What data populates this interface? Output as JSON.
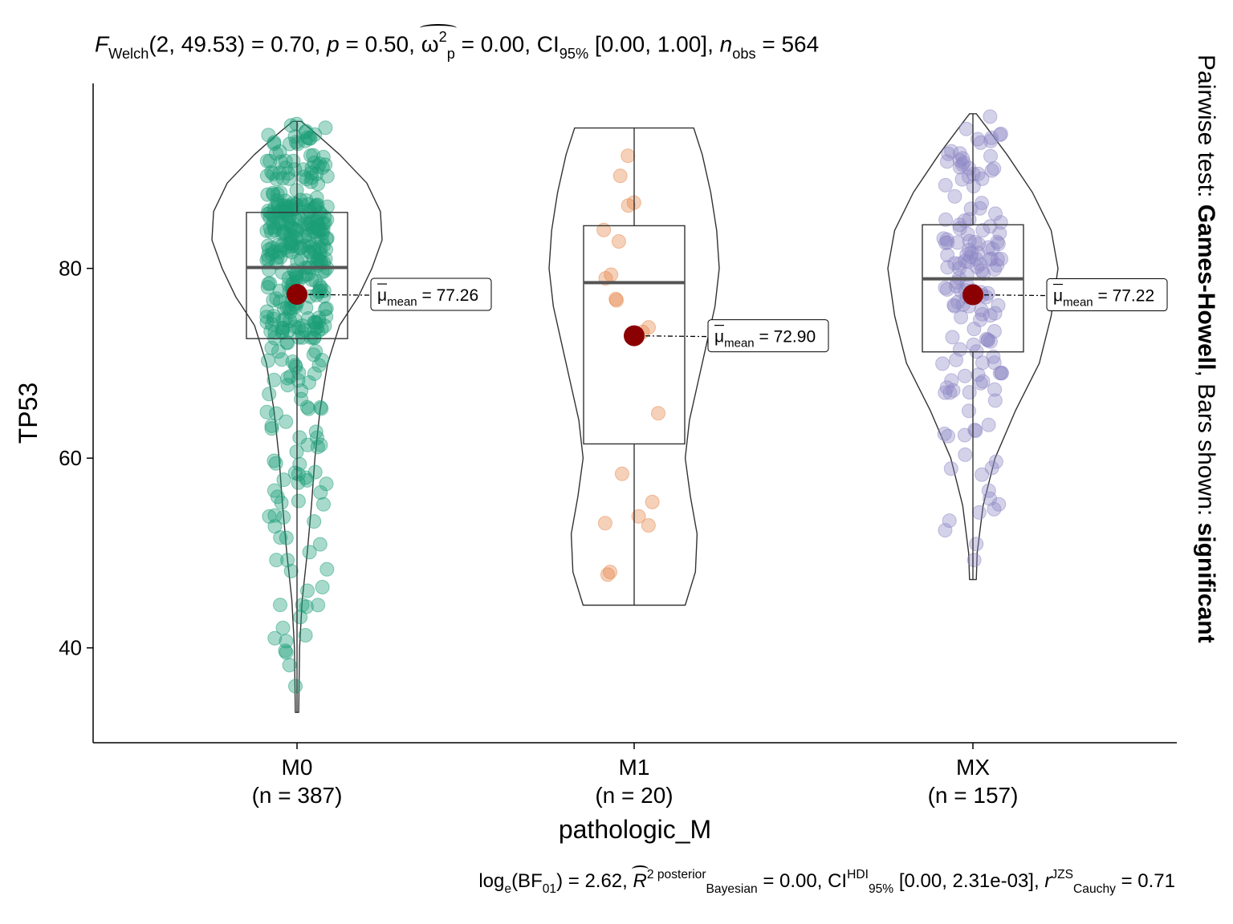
{
  "colors": {
    "M0": "#1B9E77",
    "M1": "#E6874A",
    "MX": "#8E88C6",
    "mean_point": "#8B0000"
  },
  "title_text": {
    "f_sym": "F",
    "f_sub": "Welch",
    "f_args": "(2, 49.53) = 0.70,",
    "p_sym": "p",
    "p_val": "= 0.50,",
    "omega": "ω",
    "omega_sup": "2",
    "omega_sub": "p",
    "omega_val": "= 0.00, CI",
    "ci_sub": "95%",
    "ci_val": "[0.00, 1.00],",
    "n_sym": "n",
    "n_sub": "obs",
    "n_val": "= 564"
  },
  "caption_text": {
    "log_a": "log",
    "log_sub": "e",
    "log_b": "(BF",
    "bf_sub": "01",
    "log_c": ") = 2.62,",
    "r_sym": "R",
    "r_sup": "2 posterior",
    "r_sub": "Bayesian",
    "r_val": "= 0.00, CI",
    "ci_sup": "HDI",
    "ci_sub": "95%",
    "ci_val": "[0.00, 2.31e-03],",
    "rc_sym": "r",
    "rc_sup": "JZS",
    "rc_sub": "Cauchy",
    "rc_val": "= 0.71"
  },
  "side_text": {
    "prefix": "Pairwise test: ",
    "test": "Games-Howell",
    "middle": ", Bars shown: ",
    "bars": "significant"
  },
  "chart_data": {
    "type": "violin-box-scatter",
    "xlabel": "pathologic_M",
    "ylabel": "TP53",
    "ylim": [
      30,
      99.5
    ],
    "yticks": [
      40,
      60,
      80
    ],
    "grid": false,
    "mean_label_prefix": "μ",
    "mean_label_sub": "mean",
    "groups": [
      {
        "name": "M0",
        "n_label": "(n = 387)",
        "n": 387,
        "min": 33.2,
        "q1": 72.6,
        "median": 80.1,
        "q3": 85.9,
        "max": 95.5,
        "mean": 77.26,
        "mean_label": "= 77.26",
        "density": [
          [
            33.2,
            0.02
          ],
          [
            40,
            0.03
          ],
          [
            45,
            0.06
          ],
          [
            50,
            0.12
          ],
          [
            55,
            0.17
          ],
          [
            60,
            0.21
          ],
          [
            65,
            0.27
          ],
          [
            70,
            0.36
          ],
          [
            74,
            0.5
          ],
          [
            77,
            0.72
          ],
          [
            80,
            0.88
          ],
          [
            83,
            1.0
          ],
          [
            86,
            0.98
          ],
          [
            89,
            0.82
          ],
          [
            92,
            0.5
          ],
          [
            94,
            0.25
          ],
          [
            95.5,
            0.05
          ]
        ]
      },
      {
        "name": "M1",
        "n_label": "(n = 20)",
        "n": 20,
        "min": 44.5,
        "q1": 61.5,
        "median": 78.5,
        "q3": 84.5,
        "max": 94.8,
        "mean": 72.9,
        "mean_label": "= 72.90",
        "density": [
          [
            44.5,
            0.6
          ],
          [
            48,
            0.72
          ],
          [
            52,
            0.74
          ],
          [
            56,
            0.66
          ],
          [
            60,
            0.6
          ],
          [
            64,
            0.65
          ],
          [
            68,
            0.75
          ],
          [
            72,
            0.85
          ],
          [
            76,
            0.95
          ],
          [
            80,
            1.0
          ],
          [
            84,
            0.97
          ],
          [
            88,
            0.9
          ],
          [
            92,
            0.8
          ],
          [
            94.8,
            0.7
          ]
        ]
      },
      {
        "name": "MX",
        "n_label": "(n = 157)",
        "n": 157,
        "min": 47.2,
        "q1": 71.2,
        "median": 78.9,
        "q3": 84.6,
        "max": 96.3,
        "mean": 77.22,
        "mean_label": "= 77.22",
        "density": [
          [
            47.2,
            0.04
          ],
          [
            50,
            0.05
          ],
          [
            55,
            0.12
          ],
          [
            60,
            0.26
          ],
          [
            65,
            0.5
          ],
          [
            70,
            0.78
          ],
          [
            75,
            0.92
          ],
          [
            80,
            1.0
          ],
          [
            84,
            0.92
          ],
          [
            88,
            0.7
          ],
          [
            92,
            0.4
          ],
          [
            95,
            0.15
          ],
          [
            96.3,
            0.04
          ]
        ]
      }
    ]
  }
}
